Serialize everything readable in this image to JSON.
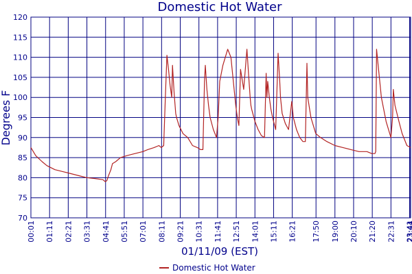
{
  "chart_data": {
    "type": "line",
    "title": "Domestic Hot Water",
    "xlabel": "01/11/09 (EST)",
    "ylabel": "Degrees F",
    "ylim": [
      70,
      120
    ],
    "yticks": [
      70,
      75,
      80,
      85,
      90,
      95,
      100,
      105,
      110,
      115,
      120
    ],
    "xlim": [
      0,
      23.73
    ],
    "xtick_labels": [
      "00:01",
      "01:11",
      "02:21",
      "03:31",
      "04:41",
      "05:51",
      "07:01",
      "08:11",
      "09:21",
      "10:31",
      "11:41",
      "12:51",
      "14:01",
      "15:11",
      "16:21",
      "17:50",
      "19:00",
      "20:10",
      "21:20",
      "22:31",
      "23:41",
      "23:44"
    ],
    "xtick_hours": [
      0,
      1.167,
      2.333,
      3.5,
      4.667,
      5.833,
      7.0,
      8.167,
      9.333,
      10.5,
      11.667,
      12.833,
      14.0,
      15.167,
      16.333,
      17.817,
      19.0,
      20.167,
      21.333,
      22.5,
      23.667,
      23.717
    ],
    "grid": true,
    "legend": "bottom-center",
    "colors": {
      "line": "#b22222",
      "grid": "#000080",
      "text": "#00008b"
    },
    "series": [
      {
        "name": "Domestic Hot Water",
        "x": [
          0,
          0.3,
          0.7,
          1.0,
          1.5,
          2.0,
          2.5,
          3.0,
          3.5,
          4.0,
          4.5,
          4.65,
          4.75,
          4.85,
          5.0,
          5.1,
          5.3,
          5.6,
          6.0,
          6.5,
          7.0,
          7.3,
          7.7,
          8.0,
          8.15,
          8.3,
          8.4,
          8.5,
          8.6,
          8.7,
          8.8,
          8.85,
          8.95,
          9.05,
          9.1,
          9.25,
          9.5,
          9.8,
          10.1,
          10.4,
          10.6,
          10.75,
          10.85,
          10.9,
          11.0,
          11.1,
          11.2,
          11.4,
          11.6,
          11.7,
          11.8,
          11.9,
          12.0,
          12.15,
          12.3,
          12.5,
          12.65,
          12.8,
          12.9,
          13.0,
          13.1,
          13.3,
          13.5,
          13.6,
          13.7,
          13.75,
          13.8,
          14.0,
          14.2,
          14.4,
          14.6,
          14.7,
          14.75,
          14.8,
          14.9,
          15.0,
          15.1,
          15.3,
          15.45,
          15.55,
          15.6,
          15.7,
          15.9,
          16.1,
          16.3,
          16.4,
          16.6,
          16.8,
          17.0,
          17.15,
          17.25,
          17.3,
          17.5,
          17.8,
          18.1,
          18.5,
          19.0,
          19.5,
          20.0,
          20.5,
          21.0,
          21.3,
          21.5,
          21.55,
          21.6,
          21.7,
          21.9,
          22.2,
          22.5,
          22.6,
          22.65,
          22.75,
          23.0,
          23.2,
          23.5,
          23.73
        ],
        "values": [
          87.5,
          85.5,
          84.0,
          83.0,
          82.0,
          81.5,
          81.0,
          80.5,
          80.0,
          79.8,
          79.5,
          79.0,
          79.3,
          80.5,
          82.0,
          83.5,
          84.0,
          85.0,
          85.5,
          86.0,
          86.5,
          87.0,
          87.5,
          88.0,
          87.5,
          88.0,
          100.0,
          110.5,
          107.0,
          103.0,
          100.0,
          108.0,
          101.0,
          96.0,
          95.0,
          93.0,
          91.0,
          90.0,
          88.0,
          87.5,
          87.0,
          87.0,
          104.0,
          108.0,
          102.0,
          98.0,
          95.0,
          92.0,
          90.0,
          95.0,
          104.0,
          106.0,
          108.0,
          110.0,
          112.0,
          110.0,
          104.0,
          98.0,
          95.0,
          93.0,
          107.0,
          102.0,
          112.0,
          106.0,
          100.0,
          98.0,
          97.0,
          94.0,
          92.0,
          90.5,
          90.0,
          106.0,
          100.0,
          104.0,
          100.0,
          97.0,
          95.0,
          92.0,
          111.0,
          104.0,
          100.0,
          96.0,
          93.5,
          92.0,
          99.0,
          95.0,
          92.0,
          90.0,
          89.0,
          89.0,
          108.5,
          100.0,
          95.0,
          91.0,
          90.0,
          89.0,
          88.0,
          87.5,
          87.0,
          86.5,
          86.5,
          86.0,
          86.0,
          86.5,
          112.0,
          108.0,
          100.0,
          94.0,
          90.0,
          95.0,
          102.0,
          98.0,
          94.0,
          91.0,
          88.0,
          87.5
        ]
      }
    ]
  }
}
